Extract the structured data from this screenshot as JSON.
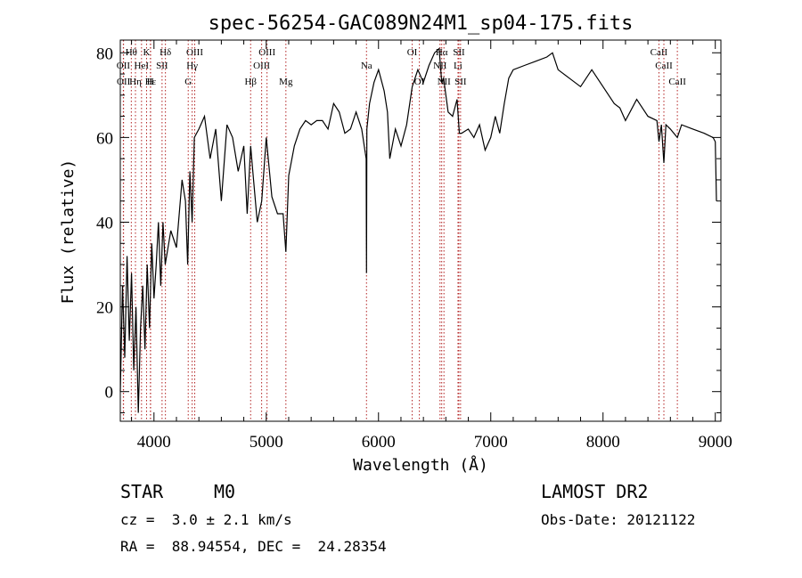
{
  "chart_data": {
    "type": "line",
    "title": "spec-56254-GAC089N24M1_sp04-175.fits",
    "xlabel": "Wavelength (Å)",
    "ylabel": "Flux (relative)",
    "xlim": [
      3700,
      9050
    ],
    "ylim": [
      -7,
      83
    ],
    "x_ticks": [
      4000,
      5000,
      6000,
      7000,
      8000,
      9000
    ],
    "y_ticks": [
      0,
      20,
      40,
      60,
      80
    ],
    "grid": false,
    "series": [
      {
        "x": [
          3700,
          3720,
          3740,
          3760,
          3780,
          3800,
          3820,
          3840,
          3860,
          3880,
          3900,
          3920,
          3940,
          3960,
          3980,
          4000,
          4020,
          4040,
          4060,
          4080,
          4100,
          4150,
          4200,
          4250,
          4280,
          4300,
          4320,
          4340,
          4360,
          4400,
          4450,
          4500,
          4550,
          4600,
          4650,
          4700,
          4750,
          4800,
          4830,
          4861,
          4880,
          4920,
          4960,
          5000,
          5050,
          5100,
          5150,
          5175,
          5200,
          5250,
          5300,
          5350,
          5400,
          5450,
          5500,
          5550,
          5600,
          5650,
          5700,
          5750,
          5800,
          5850,
          5890,
          5893,
          5896,
          5920,
          5960,
          6000,
          6050,
          6080,
          6100,
          6150,
          6200,
          6250,
          6300,
          6350,
          6400,
          6450,
          6500,
          6540,
          6563,
          6580,
          6620,
          6660,
          6700,
          6720,
          6740,
          6800,
          6850,
          6900,
          6950,
          7000,
          7040,
          7080,
          7120,
          7160,
          7200,
          7300,
          7400,
          7500,
          7550,
          7600,
          7700,
          7800,
          7900,
          8000,
          8100,
          8150,
          8200,
          8300,
          8400,
          8480,
          8498,
          8520,
          8542,
          8560,
          8600,
          8662,
          8700,
          8800,
          8900,
          8980,
          9000,
          9010
        ],
        "values": [
          0,
          25,
          8,
          32,
          12,
          28,
          5,
          20,
          -5,
          15,
          25,
          10,
          30,
          15,
          35,
          22,
          30,
          40,
          25,
          40,
          30,
          38,
          34,
          50,
          45,
          30,
          52,
          40,
          60,
          62,
          65,
          55,
          62,
          45,
          63,
          60,
          52,
          58,
          42,
          58,
          52,
          40,
          45,
          60,
          46,
          42,
          42,
          33,
          51,
          58,
          62,
          64,
          63,
          64,
          64,
          62,
          68,
          66,
          61,
          62,
          66,
          62,
          55,
          28,
          62,
          68,
          73,
          76,
          71,
          66,
          55,
          62,
          58,
          63,
          72,
          76,
          73,
          77,
          80,
          81,
          73,
          74,
          66,
          65,
          69,
          61,
          61,
          62,
          60,
          63,
          57,
          60,
          65,
          61,
          68,
          74,
          76,
          77,
          78,
          79,
          80,
          76,
          74,
          72,
          76,
          72,
          68,
          67,
          64,
          69,
          65,
          64,
          59,
          63,
          54,
          63,
          62,
          60,
          63,
          62,
          61,
          60,
          59,
          45
        ]
      }
    ],
    "spectral_lines": [
      {
        "label": "Hθ",
        "x": 3798,
        "row": 0
      },
      {
        "label": "OII",
        "x": 3727,
        "row": 1
      },
      {
        "label": "OII",
        "x": 3729,
        "row": 2
      },
      {
        "label": "K",
        "x": 3934,
        "row": 0
      },
      {
        "label": "Hε",
        "x": 3970,
        "row": 2
      },
      {
        "label": "H",
        "x": 3968,
        "row": 2
      },
      {
        "label": "HeI",
        "x": 3889,
        "row": 1
      },
      {
        "label": "Hη",
        "x": 3835,
        "row": 2
      },
      {
        "label": "SII",
        "x": 4072,
        "row": 1
      },
      {
        "label": "Hδ",
        "x": 4102,
        "row": 0
      },
      {
        "label": "OIII",
        "x": 4363,
        "row": 0
      },
      {
        "label": "Hγ",
        "x": 4340,
        "row": 1
      },
      {
        "label": "G",
        "x": 4305,
        "row": 2
      },
      {
        "label": "Hβ",
        "x": 4861,
        "row": 2
      },
      {
        "label": "OIII",
        "x": 5007,
        "row": 0
      },
      {
        "label": "OIII",
        "x": 4959,
        "row": 1
      },
      {
        "label": "Mg",
        "x": 5175,
        "row": 2
      },
      {
        "label": "Na",
        "x": 5893,
        "row": 1
      },
      {
        "label": "OI",
        "x": 6300,
        "row": 0
      },
      {
        "label": "OI",
        "x": 6364,
        "row": 2
      },
      {
        "label": "Hα",
        "x": 6563,
        "row": 0
      },
      {
        "label": "NII",
        "x": 6548,
        "row": 1
      },
      {
        "label": "NII",
        "x": 6583,
        "row": 2
      },
      {
        "label": "SII",
        "x": 6716,
        "row": 0
      },
      {
        "label": "Li",
        "x": 6708,
        "row": 1
      },
      {
        "label": "SII",
        "x": 6731,
        "row": 2
      },
      {
        "label": "CaII",
        "x": 8498,
        "row": 0
      },
      {
        "label": "CaII",
        "x": 8542,
        "row": 1
      },
      {
        "label": "CaII",
        "x": 8662,
        "row": 2
      }
    ]
  },
  "info": {
    "object_class": "STAR",
    "subclass": "M0",
    "redshift": "cz =  3.0 ± 2.1 km/s",
    "coords": "RA =  88.94554, DEC =  24.28354",
    "survey": "LAMOST DR2",
    "obs_date": "Obs-Date: 20121122"
  },
  "colors": {
    "line": "#000000",
    "marker": "#b22222"
  }
}
